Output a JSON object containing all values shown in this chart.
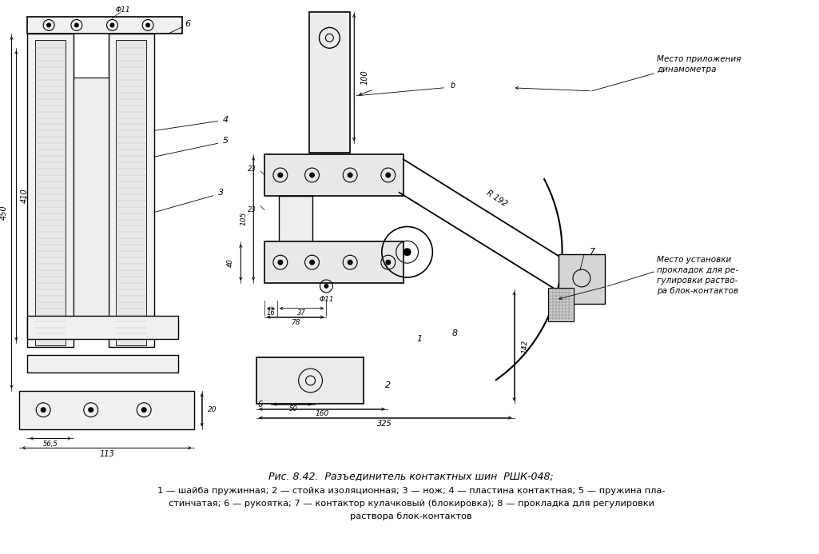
{
  "bg_color": "#ffffff",
  "line_color": "#000000",
  "fig_width": 10.25,
  "fig_height": 6.93,
  "dpi": 100,
  "caption_line1": "Рис. 8.42.  Разъединитель контактных шин  РШК-048;",
  "caption_line2": "1 — шайба пружинная; 2 — стойка изоляционная; 3 — нож; 4 — пластина контактная; 5 — пружина пла-",
  "caption_line3": "стинчатая; 6 — рукоятка; 7 — контактор кулачковый (блокировка); 8 — прокладка для регулировки",
  "caption_line4": "раствора блок-контактов",
  "annotation_right1": "Место приложения",
  "annotation_right2": "динамометра",
  "annotation_right3": "Место установки",
  "annotation_right4": "прокладок для ре-",
  "annotation_right5": "гулировки раство-",
  "annotation_right6": "ра блок-контактов"
}
